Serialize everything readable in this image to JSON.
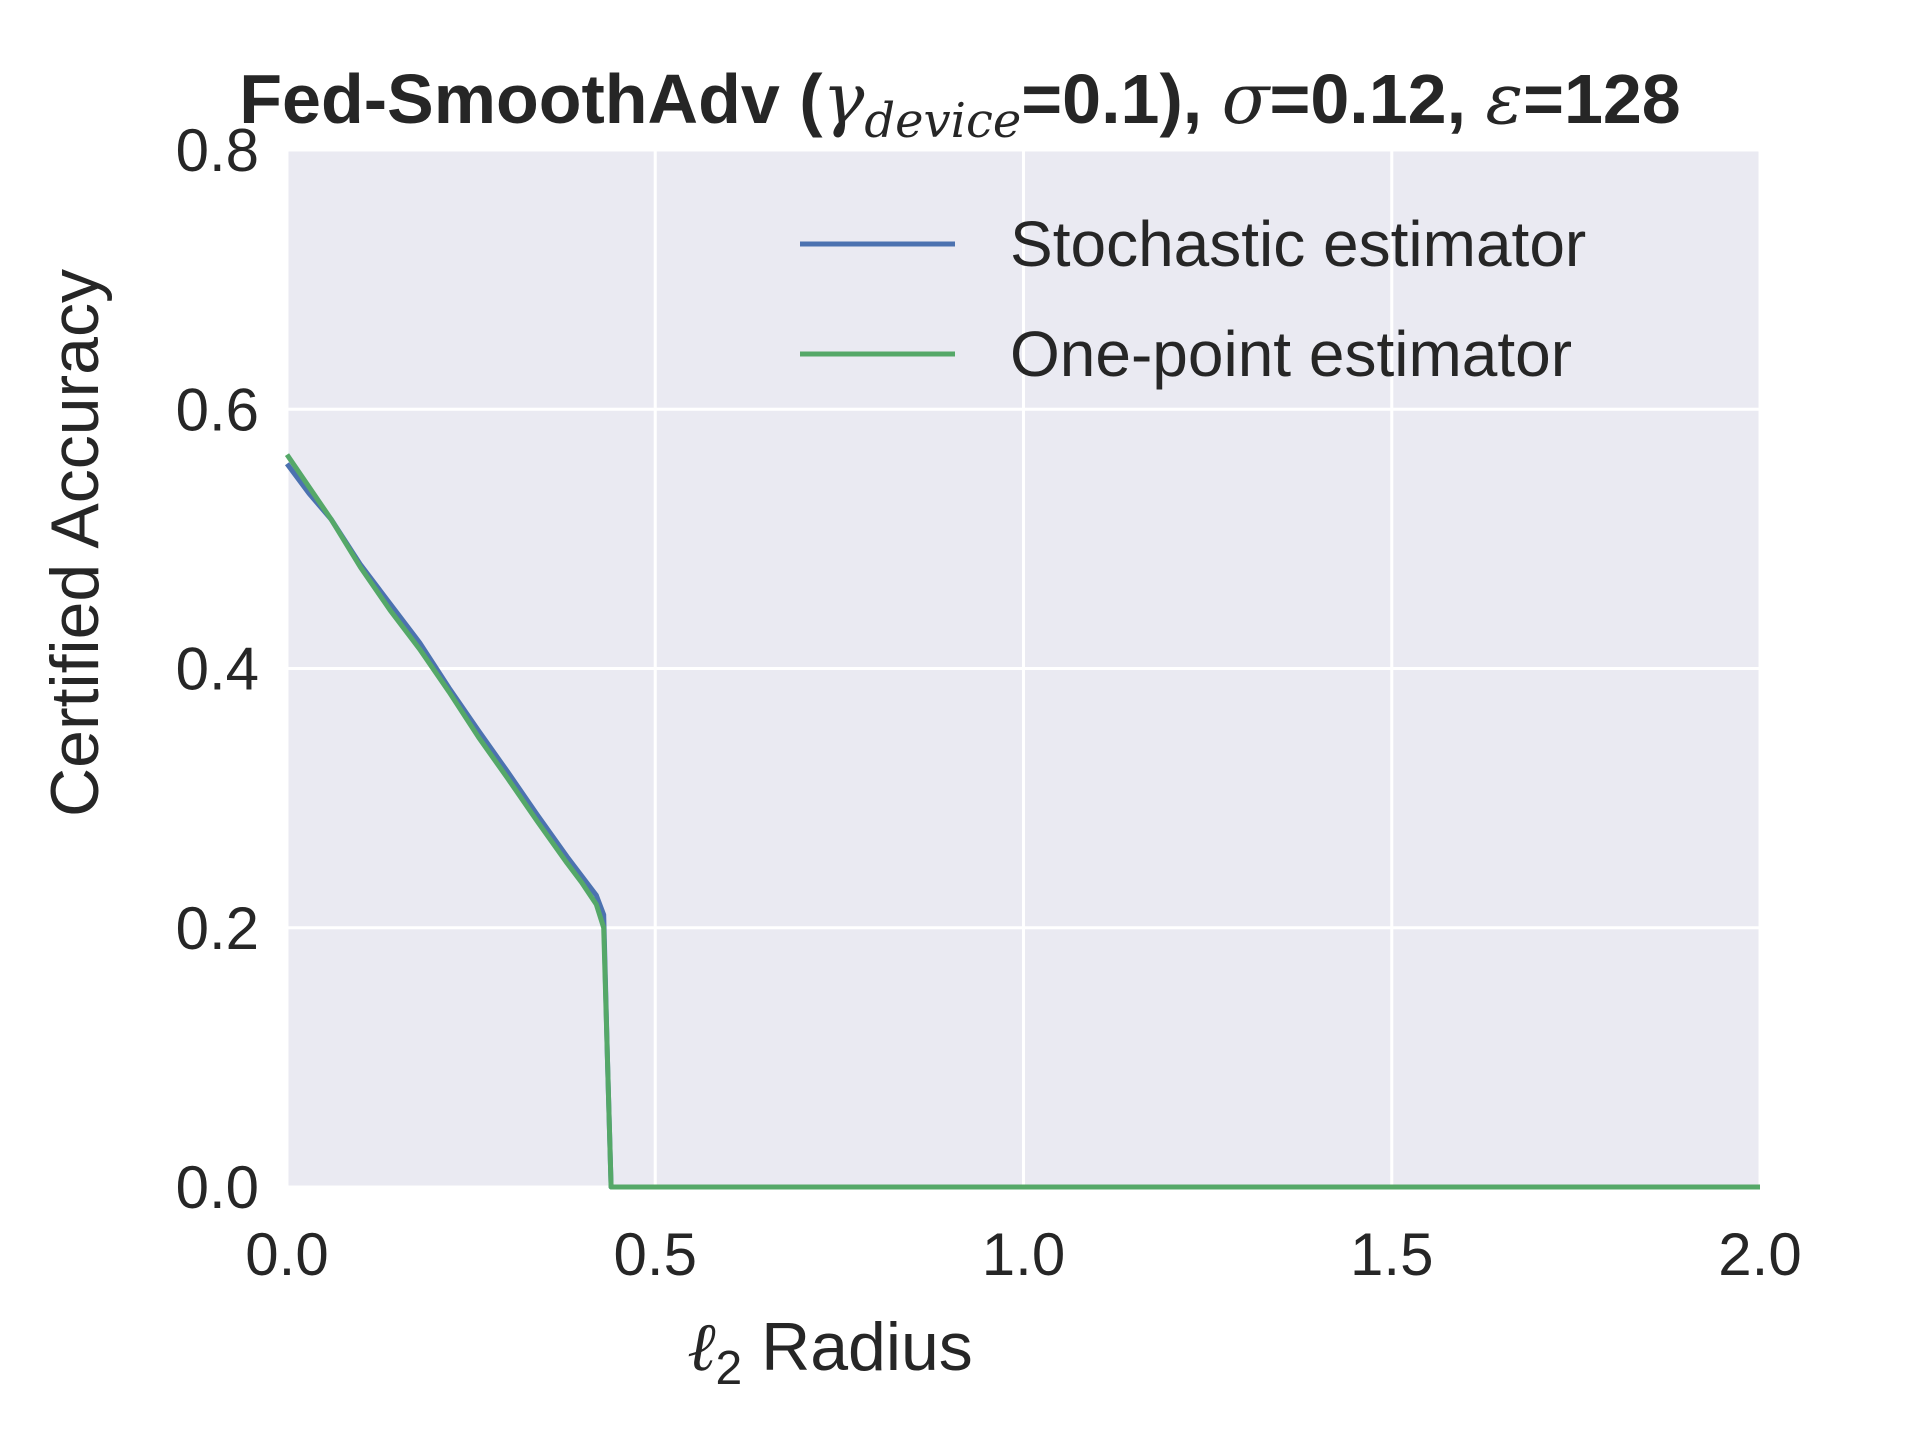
{
  "chart_data": {
    "type": "line",
    "title": {
      "prefix": "Fed-SmoothAdv (",
      "gamma_symbol": "γ",
      "gamma_subscript": "device",
      "gamma_value": "=0.1), ",
      "sigma_symbol": "σ",
      "sigma_value": "=0.12, ",
      "epsilon_symbol": "ε",
      "epsilon_value": "=128"
    },
    "xlabel": {
      "symbol": "ℓ",
      "subscript": "2",
      "text": " Radius"
    },
    "ylabel": "Certified Accuracy",
    "xlim": [
      0,
      2
    ],
    "ylim": [
      0,
      0.8
    ],
    "xticks": [
      0,
      0.5,
      1,
      1.5,
      2
    ],
    "xtick_labels": [
      "0.0",
      "0.5",
      "1.0",
      "1.5",
      "2.0"
    ],
    "yticks": [
      0,
      0.2,
      0.4,
      0.6,
      0.8
    ],
    "ytick_labels": [
      "0.0",
      "0.2",
      "0.4",
      "0.6",
      "0.8"
    ],
    "grid": true,
    "legend_position": "top-right",
    "background_color": "#EAEAF2",
    "series": [
      {
        "name": "Stochastic estimator",
        "color": "#4C72B0",
        "x": [
          0,
          0.03,
          0.06,
          0.1,
          0.14,
          0.18,
          0.22,
          0.26,
          0.3,
          0.34,
          0.38,
          0.4,
          0.42,
          0.43,
          0.435,
          0.44,
          2.0
        ],
        "y": [
          0.558,
          0.535,
          0.515,
          0.48,
          0.45,
          0.42,
          0.385,
          0.352,
          0.32,
          0.287,
          0.255,
          0.24,
          0.225,
          0.21,
          0.1,
          0.0,
          0.0
        ]
      },
      {
        "name": "One-point estimator",
        "color": "#55A868",
        "x": [
          0,
          0.03,
          0.06,
          0.1,
          0.14,
          0.18,
          0.22,
          0.26,
          0.3,
          0.34,
          0.38,
          0.4,
          0.42,
          0.43,
          0.435,
          0.44,
          2.0
        ],
        "y": [
          0.565,
          0.54,
          0.515,
          0.478,
          0.445,
          0.415,
          0.382,
          0.347,
          0.315,
          0.282,
          0.25,
          0.235,
          0.218,
          0.2,
          0.1,
          0.0,
          0.0
        ]
      }
    ]
  }
}
